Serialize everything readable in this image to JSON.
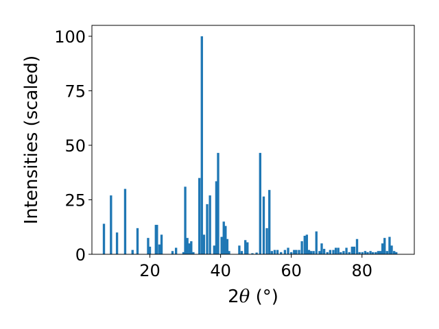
{
  "chart_data": {
    "type": "bar",
    "xlabel_prefix": "2",
    "xlabel_symbol": "θ",
    "xlabel_unit": " (°)",
    "ylabel": "Intensities (scaled)",
    "xlim": [
      3.6,
      94.8
    ],
    "ylim": [
      0,
      105
    ],
    "xticks": [
      20,
      40,
      60,
      80
    ],
    "yticks": [
      0,
      25,
      50,
      75,
      100
    ],
    "grid": false,
    "bar_width": 0.65,
    "bar_color": "#1f77b4",
    "x": [
      7.0,
      9.0,
      10.7,
      13.0,
      15.1,
      16.5,
      19.5,
      20.0,
      21.7,
      22.0,
      22.7,
      23.3,
      26.4,
      27.4,
      29.5,
      30.0,
      30.6,
      31.2,
      31.7,
      32.3,
      34.0,
      34.7,
      35.3,
      36.2,
      37.0,
      38.2,
      38.8,
      39.3,
      40.3,
      40.9,
      41.4,
      41.9,
      42.4,
      45.3,
      46.0,
      47.0,
      47.6,
      49.0,
      50.2,
      51.2,
      52.2,
      53.1,
      53.8,
      54.5,
      55.3,
      56.1,
      57.1,
      58.2,
      59.1,
      60.0,
      60.8,
      61.4,
      62.2,
      63.0,
      63.8,
      64.4,
      65.0,
      65.6,
      66.3,
      67.1,
      68.0,
      68.6,
      69.3,
      70.2,
      71.0,
      71.9,
      72.6,
      73.3,
      74.0,
      74.8,
      75.6,
      76.4,
      77.2,
      77.8,
      78.6,
      79.3,
      80.1,
      80.9,
      81.6,
      82.4,
      83.1,
      83.9,
      84.6,
      85.2,
      85.8,
      86.4,
      87.1,
      87.8,
      88.4,
      89.1,
      89.7
    ],
    "values": [
      14,
      27,
      10,
      30,
      2,
      12,
      7.5,
      3.5,
      13.5,
      13.5,
      4.5,
      9,
      1.5,
      3,
      1,
      31,
      7.5,
      5,
      6,
      1,
      35,
      100,
      9,
      23,
      27,
      4,
      33.5,
      46.5,
      8,
      15,
      13,
      7,
      1.5,
      4,
      1.5,
      6.5,
      5.5,
      0.5,
      0.8,
      46.5,
      26.5,
      12,
      29.5,
      1.5,
      2,
      2,
      1,
      2,
      3,
      1,
      2,
      2,
      2,
      6,
      8.5,
      9,
      2,
      1.5,
      1.5,
      10.5,
      1.5,
      5,
      2.5,
      1,
      2,
      2,
      3,
      3,
      1,
      1.5,
      3,
      1,
      3.5,
      3.5,
      7,
      1,
      1,
      1.5,
      1,
      1.5,
      1,
      1,
      1.5,
      1.5,
      5,
      7.5,
      1.5,
      8,
      4,
      1.5,
      1
    ]
  }
}
